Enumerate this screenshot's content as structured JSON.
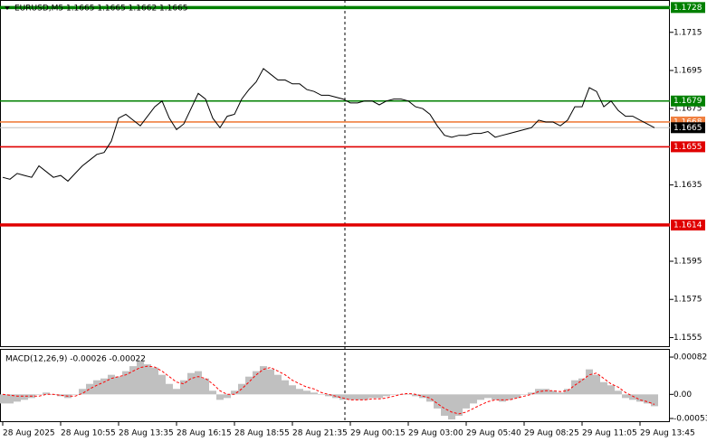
{
  "chart_data": [
    {
      "type": "line",
      "title": "EURUSD,M5 1.1665 1.1665 1.1662 1.1665",
      "color": "#000000",
      "grid": false,
      "categories": [
        "28 Aug 2025",
        null,
        null,
        null,
        null,
        null,
        null,
        null,
        "28 Aug 10:55",
        null,
        null,
        null,
        null,
        null,
        null,
        null,
        "28 Aug 13:35",
        null,
        null,
        null,
        null,
        null,
        null,
        null,
        "28 Aug 16:15",
        null,
        null,
        null,
        null,
        null,
        null,
        null,
        "28 Aug 18:55",
        null,
        null,
        null,
        null,
        null,
        null,
        null,
        "28 Aug 21:35",
        null,
        null,
        null,
        null,
        null,
        null,
        null,
        "29 Aug 00:15",
        null,
        null,
        null,
        null,
        null,
        null,
        null,
        "29 Aug 03:00",
        null,
        null,
        null,
        null,
        null,
        null,
        null,
        "29 Aug 05:40",
        null,
        null,
        null,
        null,
        null,
        null,
        null,
        "29 Aug 08:25",
        null,
        null,
        null,
        null,
        null,
        null,
        null,
        "29 Aug 11:05",
        null,
        null,
        null,
        null,
        null,
        null,
        null,
        "29 Aug 13:45",
        null,
        null
      ],
      "values": [
        1.1639,
        1.1638,
        1.1641,
        1.164,
        1.1639,
        1.1645,
        1.1642,
        1.1639,
        1.164,
        1.1637,
        1.1641,
        1.1645,
        1.1648,
        1.1651,
        1.1652,
        1.1658,
        1.167,
        1.1672,
        1.1669,
        1.1666,
        1.1671,
        1.1676,
        1.1679,
        1.167,
        1.1664,
        1.1667,
        1.1675,
        1.1683,
        1.168,
        1.167,
        1.1665,
        1.1671,
        1.1672,
        1.168,
        1.1685,
        1.1689,
        1.1696,
        1.1693,
        1.169,
        1.169,
        1.1688,
        1.1688,
        1.1685,
        1.1684,
        1.1682,
        1.1682,
        1.1681,
        1.168,
        1.1678,
        1.1678,
        1.1679,
        1.1679,
        1.1677,
        1.1679,
        1.168,
        1.168,
        1.1679,
        1.1676,
        1.1675,
        1.1672,
        1.1666,
        1.1661,
        1.166,
        1.1661,
        1.1661,
        1.1662,
        1.1662,
        1.1663,
        1.166,
        1.1661,
        1.1662,
        1.1663,
        1.1664,
        1.1665,
        1.1669,
        1.1668,
        1.1668,
        1.1666,
        1.1669,
        1.1676,
        1.1676,
        1.1686,
        1.1684,
        1.1676,
        1.1679,
        1.1674,
        1.1671,
        1.1671,
        1.1669,
        1.1667,
        1.1665
      ],
      "ylim": [
        1.155,
        1.1731
      ],
      "yticks": [
        1.1555,
        1.1575,
        1.1595,
        1.1635,
        1.1675,
        1.1695,
        1.1715
      ],
      "levels": [
        {
          "value": 1.1728,
          "color": "#008000",
          "bold": true
        },
        {
          "value": 1.1679,
          "color": "#008000",
          "bold": false
        },
        {
          "value": 1.1668,
          "color": "#f08040",
          "bold": false
        },
        {
          "value": 1.1655,
          "color": "#e00000",
          "bold": false
        },
        {
          "value": 1.1614,
          "color": "#e00000",
          "bold": true
        }
      ]
    },
    {
      "type": "macd",
      "title": "MACD(12,26,9) -0.00026 -0.00022",
      "histogram": {
        "color": "#c0c0c0",
        "values": [
          -0.0002,
          -0.0002,
          -0.00016,
          -0.00012,
          -8e-05,
          0,
          4e-05,
          0,
          -4e-05,
          -8e-05,
          0,
          0.00012,
          0.00023,
          0.00031,
          0.00035,
          0.00043,
          0.00039,
          0.00051,
          0.00062,
          0.00074,
          0.00066,
          0.00059,
          0.00043,
          0.00023,
          0.00012,
          0.00031,
          0.00047,
          0.00051,
          0.00035,
          8e-05,
          -0.00012,
          -8e-05,
          8e-05,
          0.00023,
          0.00039,
          0.00051,
          0.00062,
          0.00055,
          0.00043,
          0.00031,
          0.0002,
          0.00012,
          8e-05,
          4e-05,
          0,
          -4e-05,
          -8e-05,
          -0.00012,
          -0.00012,
          -0.00012,
          -0.00012,
          -8e-05,
          -8e-05,
          -4e-05,
          0,
          0,
          0,
          -4e-05,
          -8e-05,
          -0.00016,
          -0.00031,
          -0.00047,
          -0.00055,
          -0.00047,
          -0.00031,
          -0.0002,
          -0.00012,
          -8e-05,
          -0.00012,
          -0.00016,
          -0.00012,
          -8e-05,
          0,
          4e-05,
          0.00012,
          0.00012,
          8e-05,
          4e-05,
          0.00012,
          0.00031,
          0.00035,
          0.00055,
          0.00043,
          0.00027,
          0.0002,
          8e-05,
          -8e-05,
          -0.00012,
          -0.00016,
          -0.0002,
          -0.00026
        ]
      },
      "signal": {
        "color": "#ff0000",
        "values": [
          0,
          -2e-05,
          -4e-05,
          -4e-05,
          -4e-05,
          -4e-05,
          0,
          0,
          -2e-05,
          -4e-05,
          -4e-05,
          2e-05,
          0.00012,
          0.0002,
          0.00027,
          0.00035,
          0.00039,
          0.00043,
          0.00051,
          0.00059,
          0.00062,
          0.0006,
          0.00051,
          0.00039,
          0.00027,
          0.00023,
          0.00035,
          0.00039,
          0.00035,
          0.00023,
          8e-05,
          0,
          0,
          0.00012,
          0.00027,
          0.00043,
          0.00055,
          0.00059,
          0.00051,
          0.00043,
          0.00031,
          0.00023,
          0.00016,
          0.00012,
          4e-05,
          0,
          -4e-05,
          -8e-05,
          -0.00012,
          -0.00012,
          -0.00012,
          -0.0001,
          -0.0001,
          -8e-05,
          -4e-05,
          0,
          2e-05,
          0,
          -4e-05,
          -8e-05,
          -0.0002,
          -0.00031,
          -0.00039,
          -0.00043,
          -0.00039,
          -0.00031,
          -0.00023,
          -0.00016,
          -0.00012,
          -0.00012,
          -0.00012,
          -8e-05,
          -4e-05,
          0,
          6e-05,
          8e-05,
          8e-05,
          6e-05,
          8e-05,
          0.0002,
          0.00031,
          0.00043,
          0.00047,
          0.00035,
          0.00023,
          0.00016,
          4e-05,
          -4e-05,
          -0.00012,
          -0.00016,
          -0.00022
        ]
      },
      "ylim": [
        -0.00059,
        0.00098
      ],
      "yticks": [
        -0.00053,
        {
          "value": 0,
          "label": "0.00"
        },
        0.00082
      ]
    }
  ]
}
